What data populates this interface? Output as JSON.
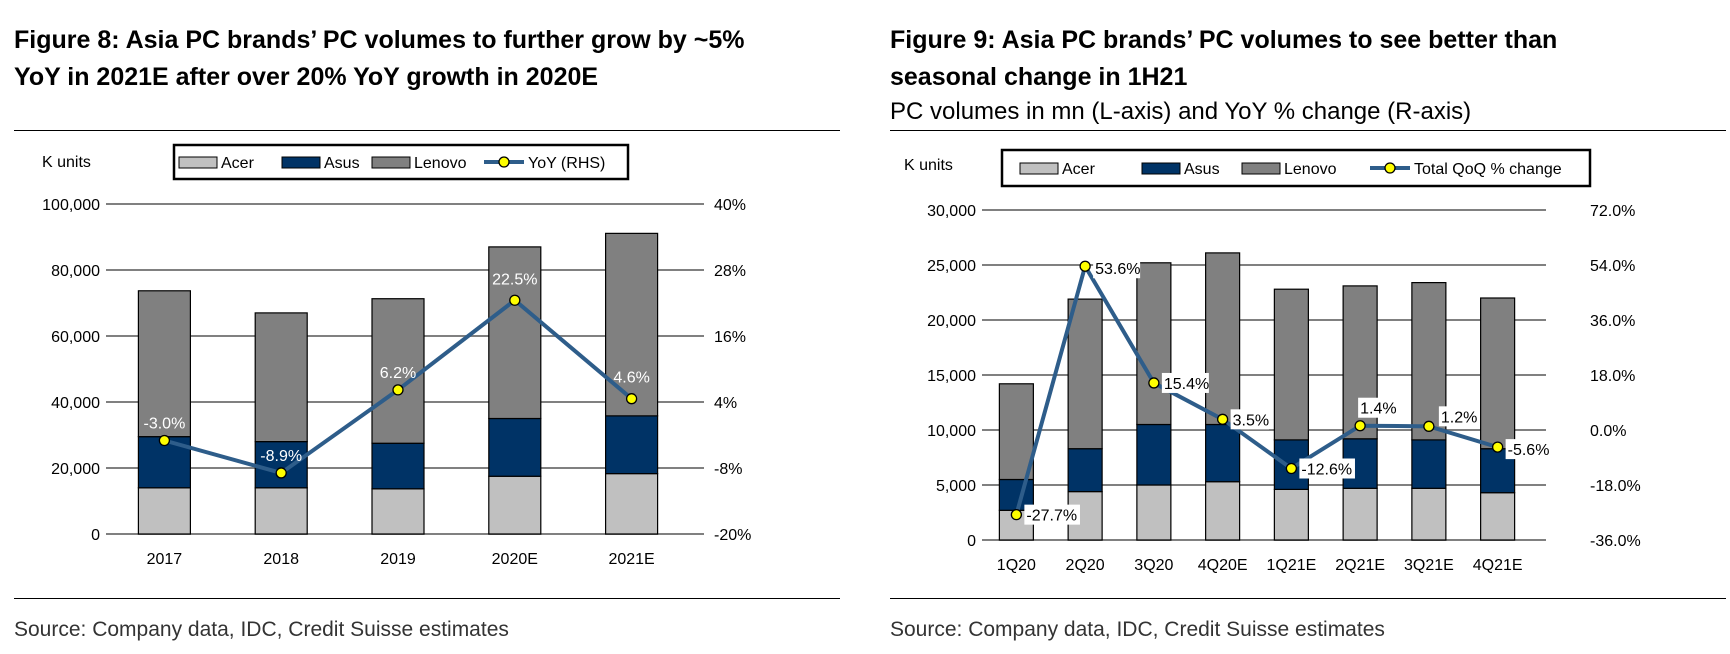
{
  "figures": [
    {
      "title_line1": "Figure 8: Asia PC brands’ PC volumes to further grow by ~5%",
      "title_line2": "YoY in 2021E after over 20% YoY growth in 2020E",
      "subtitle": "",
      "source": "Source: Company data, IDC, Credit Suisse estimates"
    },
    {
      "title_line1": "Figure 9: Asia PC brands’ PC volumes to see better than",
      "title_line2": "seasonal change in 1H21",
      "subtitle": "PC volumes in mn (L-axis) and YoY % change (R-axis)",
      "source": "Source: Company data, IDC, Credit Suisse estimates"
    }
  ],
  "chart_data": [
    {
      "type": "bar",
      "stacked": true,
      "categories": [
        "2017",
        "2018",
        "2019",
        "2020E",
        "2021E"
      ],
      "series": [
        {
          "name": "Acer",
          "values": [
            14000,
            14000,
            13700,
            17500,
            18300
          ]
        },
        {
          "name": "Asus",
          "values": [
            15500,
            14000,
            13800,
            17500,
            17500
          ]
        },
        {
          "name": "Lenovo",
          "values": [
            44200,
            39000,
            43800,
            52000,
            55300
          ]
        }
      ],
      "line_series": {
        "name": "YoY (RHS)",
        "values": [
          -3.0,
          -8.9,
          6.2,
          22.5,
          4.6
        ],
        "labels": [
          "-3.0%",
          "-8.9%",
          "6.2%",
          "22.5%",
          "4.6%"
        ]
      },
      "ylabel": "K units",
      "ylim": [
        0,
        100000
      ],
      "yticks": [
        "0",
        "20,000",
        "40,000",
        "60,000",
        "80,000",
        "100,000"
      ],
      "y2lim": [
        -20,
        40
      ],
      "y2ticks": [
        "-20%",
        "-8%",
        "4%",
        "16%",
        "28%",
        "40%"
      ],
      "legend_placement": "top-center",
      "grid": true,
      "colors": {
        "Acer": "#c0c0c0",
        "Asus": "#003366",
        "Lenovo": "#808080",
        "line": "#2e5d8a",
        "marker": "#ffff00"
      }
    },
    {
      "type": "bar",
      "stacked": true,
      "categories": [
        "1Q20",
        "2Q20",
        "3Q20",
        "4Q20E",
        "1Q21E",
        "2Q21E",
        "3Q21E",
        "4Q21E"
      ],
      "series": [
        {
          "name": "Acer",
          "values": [
            2700,
            4400,
            5000,
            5300,
            4600,
            4700,
            4700,
            4300
          ]
        },
        {
          "name": "Asus",
          "values": [
            2800,
            3900,
            5500,
            5200,
            4500,
            4500,
            4400,
            4000
          ]
        },
        {
          "name": "Lenovo",
          "values": [
            8700,
            13600,
            14700,
            15600,
            13700,
            13900,
            14300,
            13700
          ]
        }
      ],
      "line_series": {
        "name": "Total QoQ % change",
        "values": [
          -27.7,
          53.6,
          15.4,
          3.5,
          -12.6,
          1.4,
          1.2,
          -5.6
        ],
        "labels": [
          "-27.7%",
          "53.6%",
          "15.4%",
          "3.5%",
          "-12.6%",
          "1.4%",
          "1.2%",
          "-5.6%"
        ]
      },
      "ylabel": "K units",
      "ylim": [
        0,
        30000
      ],
      "yticks": [
        "0",
        "5,000",
        "10,000",
        "15,000",
        "20,000",
        "25,000",
        "30,000"
      ],
      "y2lim": [
        -36,
        72
      ],
      "y2ticks": [
        "-36.0%",
        "-18.0%",
        "0.0%",
        "18.0%",
        "36.0%",
        "54.0%",
        "72.0%"
      ],
      "legend_placement": "top-center",
      "grid": true,
      "colors": {
        "Acer": "#c0c0c0",
        "Asus": "#003366",
        "Lenovo": "#808080",
        "line": "#2e5d8a",
        "marker": "#ffff00"
      }
    }
  ]
}
